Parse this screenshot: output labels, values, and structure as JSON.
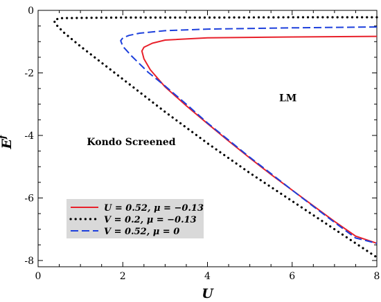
{
  "chart_data": {
    "type": "line",
    "xlabel": "U",
    "ylabel": "E",
    "ylabel_sup": "f",
    "xlim": [
      0,
      8
    ],
    "ylim": [
      -8.2,
      0
    ],
    "xticks": [
      0,
      2,
      4,
      6,
      8
    ],
    "yticks": [
      0,
      -2,
      -4,
      -6,
      -8
    ],
    "xtick_labels": [
      "0",
      "2",
      "4",
      "6",
      "8"
    ],
    "ytick_labels": [
      "0",
      "-2",
      "-4",
      "-6",
      "-8"
    ],
    "grid": false,
    "legend_position": "lower-left",
    "annotations": [
      {
        "text": "LM",
        "x": 5.9,
        "y": -2.8
      },
      {
        "text": "Kondo Screened",
        "x": 2.2,
        "y": -4.2
      }
    ],
    "series": [
      {
        "name": "U = 0.52, μ = −0.13",
        "color": "#e8202a",
        "dash": "solid",
        "x": [
          8.0,
          6.0,
          4.0,
          3.0,
          2.7,
          2.5,
          2.45,
          2.5,
          2.65,
          3.0,
          3.5,
          4.0,
          4.5,
          5.0,
          5.5,
          6.0,
          6.5,
          7.0,
          7.5,
          8.0
        ],
        "y": [
          -0.83,
          -0.85,
          -0.88,
          -0.95,
          -1.05,
          -1.18,
          -1.3,
          -1.55,
          -1.9,
          -2.45,
          -3.05,
          -3.62,
          -4.18,
          -4.72,
          -5.25,
          -5.75,
          -6.25,
          -6.75,
          -7.22,
          -7.45
        ]
      },
      {
        "name": "V = 0.2, μ = −0.13",
        "color": "#000000",
        "dash": "dotted",
        "x": [
          8.0,
          6.0,
          4.0,
          2.0,
          1.0,
          0.5,
          0.38,
          0.4,
          0.6,
          1.0,
          2.0,
          3.0,
          4.0,
          5.0,
          6.0,
          7.0,
          8.0
        ],
        "y": [
          -0.22,
          -0.22,
          -0.23,
          -0.23,
          -0.24,
          -0.25,
          -0.32,
          -0.42,
          -0.7,
          -1.15,
          -2.2,
          -3.25,
          -4.25,
          -5.2,
          -6.1,
          -7.0,
          -7.9
        ]
      },
      {
        "name": "V = 0.52, μ = 0",
        "color": "#1c3fdc",
        "dash": "dashed",
        "x": [
          8.0,
          6.0,
          4.0,
          3.0,
          2.4,
          2.15,
          2.0,
          1.95,
          2.0,
          2.2,
          2.6,
          3.0,
          3.5,
          4.0,
          4.5,
          5.0,
          5.5,
          6.0,
          6.5,
          7.0,
          7.5,
          8.0
        ],
        "y": [
          -0.53,
          -0.56,
          -0.6,
          -0.65,
          -0.73,
          -0.8,
          -0.88,
          -0.97,
          -1.15,
          -1.45,
          -1.98,
          -2.42,
          -3.0,
          -3.6,
          -4.15,
          -4.7,
          -5.22,
          -5.75,
          -6.27,
          -6.78,
          -7.28,
          -7.45
        ]
      }
    ]
  }
}
